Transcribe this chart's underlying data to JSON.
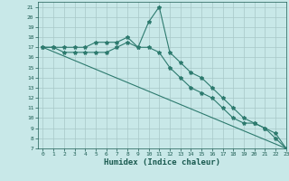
{
  "title": "",
  "xlabel": "Humidex (Indice chaleur)",
  "xlim": [
    -0.5,
    23
  ],
  "ylim": [
    7,
    21.5
  ],
  "yticks": [
    7,
    8,
    9,
    10,
    11,
    12,
    13,
    14,
    15,
    16,
    17,
    18,
    19,
    20,
    21
  ],
  "xticks": [
    0,
    1,
    2,
    3,
    4,
    5,
    6,
    7,
    8,
    9,
    10,
    11,
    12,
    13,
    14,
    15,
    16,
    17,
    18,
    19,
    20,
    21,
    22,
    23
  ],
  "line1_x": [
    0,
    1,
    2,
    3,
    4,
    5,
    6,
    7,
    8,
    9,
    10,
    11,
    12,
    13,
    14,
    15,
    16,
    17,
    18,
    19,
    20,
    21,
    22,
    23
  ],
  "line1_y": [
    17,
    17,
    17,
    17,
    17,
    17.5,
    17.5,
    17.5,
    18,
    17,
    19.5,
    21,
    16.5,
    15.5,
    14.5,
    14,
    13,
    12,
    11,
    10,
    9.5,
    9,
    8,
    7
  ],
  "line2_x": [
    0,
    1,
    2,
    3,
    4,
    5,
    6,
    7,
    8,
    9,
    10,
    11,
    12,
    13,
    14,
    15,
    16,
    17,
    18,
    19,
    20,
    21,
    22,
    23
  ],
  "line2_y": [
    17,
    17,
    16.5,
    16.5,
    16.5,
    16.5,
    16.5,
    17,
    17.5,
    17,
    17,
    16.5,
    15,
    14,
    13,
    12.5,
    12,
    11,
    10,
    9.5,
    9.5,
    9,
    8.5,
    7
  ],
  "line3_x": [
    0,
    23
  ],
  "line3_y": [
    17,
    7
  ],
  "line_color": "#2d7a6e",
  "bg_color": "#c8e8e8",
  "grid_color": "#a8c8c8"
}
